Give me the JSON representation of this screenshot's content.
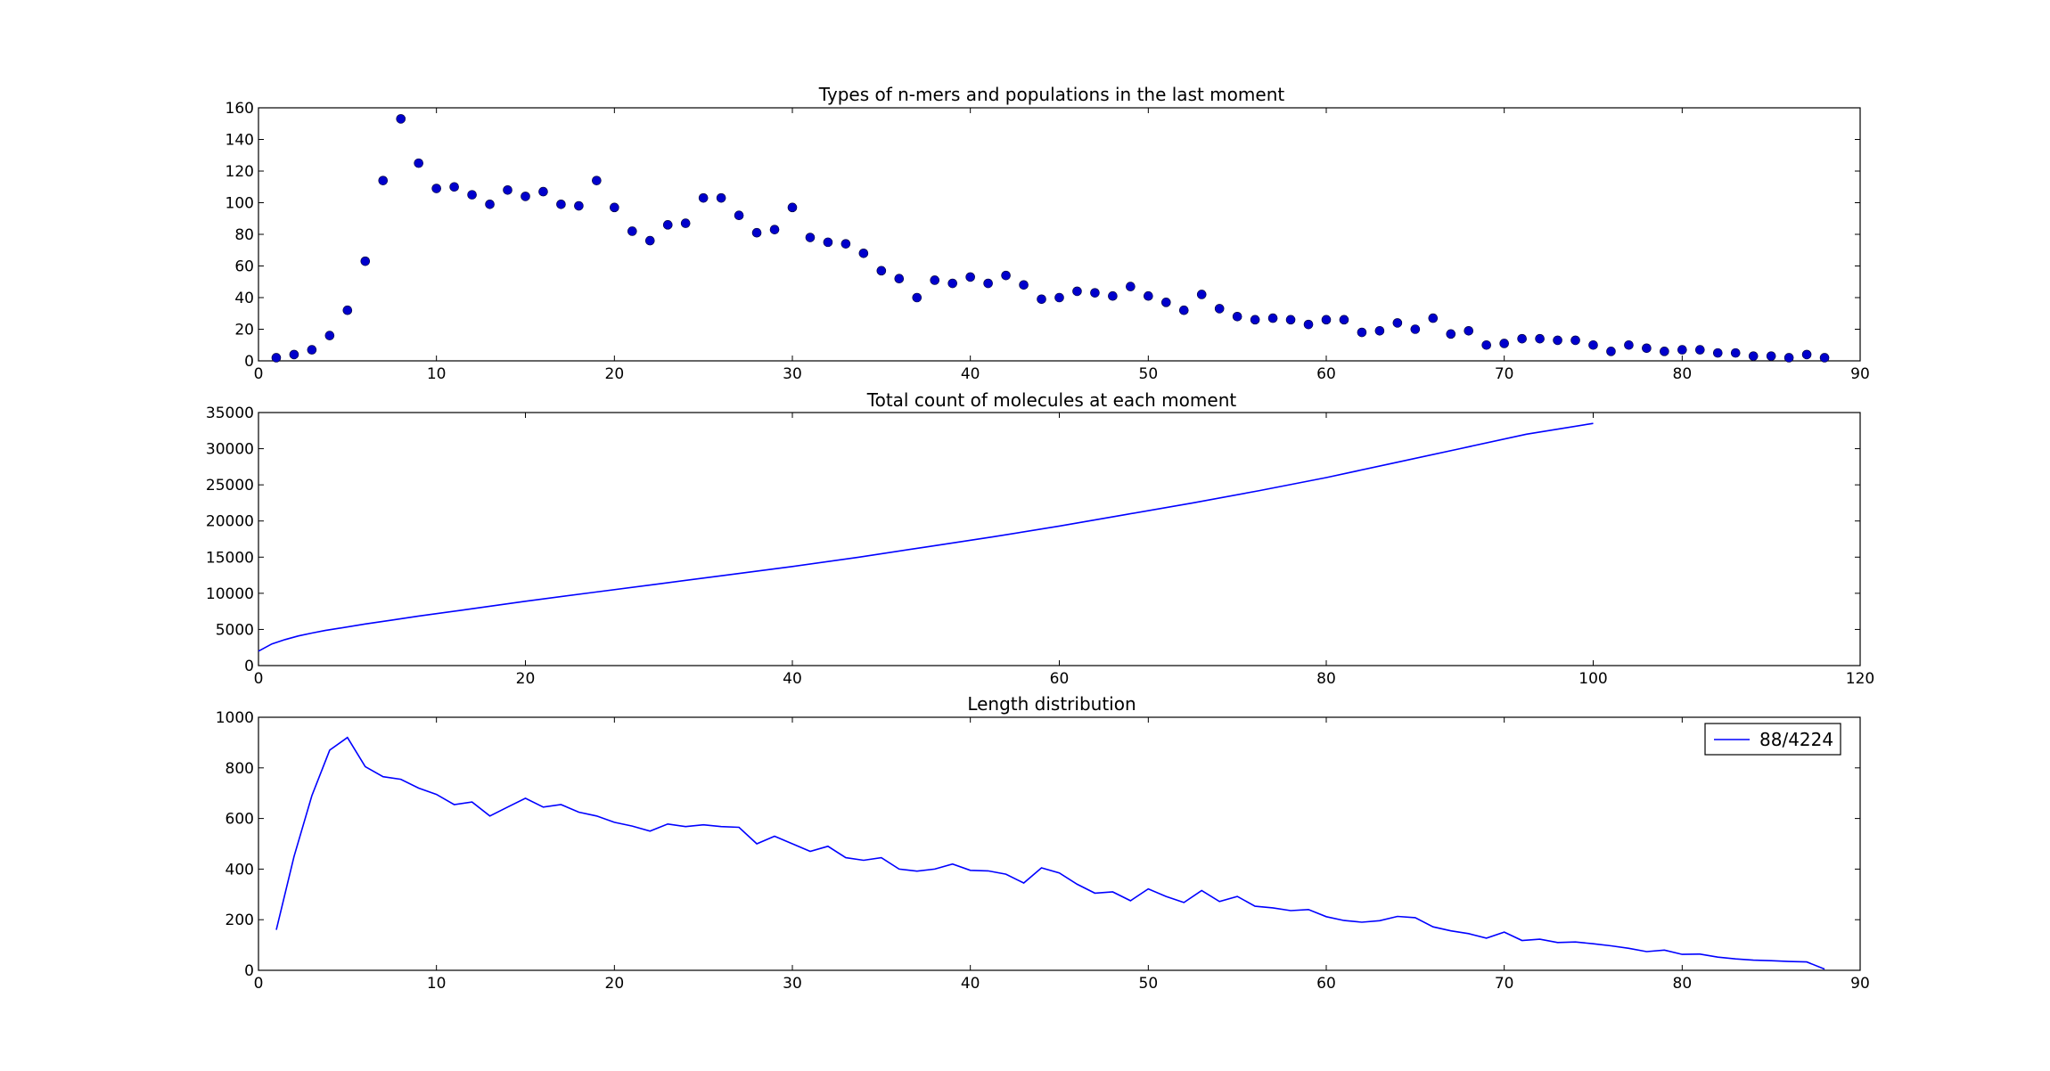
{
  "chart_data": [
    {
      "type": "scatter",
      "title": "Types of n-mers and populations in the last moment",
      "xlabel": "",
      "ylabel": "",
      "xlim": [
        0,
        90
      ],
      "ylim": [
        0,
        160
      ],
      "xticks": [
        "0",
        "10",
        "20",
        "30",
        "40",
        "50",
        "60",
        "70",
        "80",
        "90"
      ],
      "yticks": [
        "0",
        "20",
        "40",
        "60",
        "80",
        "100",
        "120",
        "140",
        "160"
      ],
      "grid": false,
      "color": "#0000cc",
      "series": [
        {
          "x": [
            1,
            2,
            3,
            4,
            5,
            6,
            7,
            8,
            9,
            10,
            11,
            12,
            13,
            14,
            15,
            16,
            17,
            18,
            19,
            20,
            21,
            22,
            23,
            24,
            25,
            26,
            27,
            28,
            29,
            30,
            31,
            32,
            33,
            34,
            35,
            36,
            37,
            38,
            39,
            40,
            41,
            42,
            43,
            44,
            45,
            46,
            47,
            48,
            49,
            50,
            51,
            52,
            53,
            54,
            55,
            56,
            57,
            58,
            59,
            60,
            61,
            62,
            63,
            64,
            65,
            66,
            67,
            68,
            69,
            70,
            71,
            72,
            73,
            74,
            75,
            76,
            77,
            78,
            79,
            80,
            81,
            82,
            83,
            84,
            85,
            86,
            87,
            88
          ],
          "y": [
            2,
            4,
            7,
            16,
            32,
            63,
            114,
            153,
            125,
            109,
            110,
            105,
            99,
            108,
            104,
            107,
            99,
            98,
            114,
            97,
            82,
            76,
            86,
            87,
            103,
            103,
            92,
            81,
            83,
            97,
            78,
            75,
            74,
            68,
            57,
            52,
            40,
            51,
            49,
            53,
            49,
            54,
            48,
            39,
            40,
            44,
            43,
            41,
            47,
            41,
            37,
            32,
            42,
            33,
            28,
            26,
            27,
            26,
            23,
            26,
            26,
            18,
            19,
            24,
            20,
            27,
            17,
            19,
            10,
            11,
            14,
            14,
            13,
            13,
            10,
            6,
            10,
            8,
            6,
            7,
            7,
            5,
            5,
            3,
            3,
            2,
            4,
            2
          ]
        }
      ]
    },
    {
      "type": "line",
      "title": "Total count of molecules at each moment",
      "xlabel": "",
      "ylabel": "",
      "xlim": [
        0,
        120
      ],
      "ylim": [
        0,
        35000
      ],
      "xticks": [
        "0",
        "20",
        "40",
        "60",
        "80",
        "100",
        "120"
      ],
      "yticks": [
        "0",
        "5000",
        "10000",
        "15000",
        "20000",
        "25000",
        "30000",
        "35000"
      ],
      "grid": false,
      "color": "#0000ff",
      "series": [
        {
          "x": [
            0,
            1,
            2,
            3,
            4,
            5,
            6,
            8,
            10,
            12,
            15,
            20,
            25,
            30,
            35,
            40,
            45,
            50,
            55,
            60,
            65,
            70,
            75,
            80,
            85,
            90,
            95,
            100
          ],
          "y": [
            2000,
            3000,
            3600,
            4100,
            4500,
            4850,
            5150,
            5750,
            6300,
            6850,
            7600,
            8900,
            10100,
            11300,
            12500,
            13700,
            15000,
            16400,
            17800,
            19300,
            20900,
            22500,
            24200,
            26000,
            28000,
            30000,
            32000,
            33500
          ]
        }
      ]
    },
    {
      "type": "line",
      "title": "Length distribution",
      "xlabel": "",
      "ylabel": "",
      "xlim": [
        0,
        90
      ],
      "ylim": [
        0,
        1000
      ],
      "xticks": [
        "0",
        "10",
        "20",
        "30",
        "40",
        "50",
        "60",
        "70",
        "80",
        "90"
      ],
      "yticks": [
        "0",
        "200",
        "400",
        "600",
        "800",
        "1000"
      ],
      "grid": false,
      "legend_position": "upper-right",
      "color": "#0000ff",
      "series": [
        {
          "name": "88/4224",
          "x": [
            1,
            2,
            3,
            4,
            5,
            6,
            7,
            8,
            9,
            10,
            11,
            12,
            13,
            14,
            15,
            16,
            17,
            18,
            19,
            20,
            21,
            22,
            23,
            24,
            25,
            26,
            27,
            28,
            29,
            30,
            31,
            32,
            33,
            34,
            35,
            36,
            37,
            38,
            39,
            40,
            41,
            42,
            43,
            44,
            45,
            46,
            47,
            48,
            49,
            50,
            51,
            52,
            53,
            54,
            55,
            56,
            57,
            58,
            59,
            60,
            61,
            62,
            63,
            64,
            65,
            66,
            67,
            68,
            69,
            70,
            71,
            72,
            73,
            74,
            75,
            76,
            77,
            78,
            79,
            80,
            81,
            82,
            83,
            84,
            85,
            86,
            87,
            88
          ],
          "y": [
            160,
            450,
            690,
            870,
            920,
            805,
            765,
            755,
            720,
            695,
            655,
            665,
            610,
            645,
            680,
            645,
            655,
            625,
            610,
            585,
            570,
            550,
            578,
            568,
            575,
            568,
            565,
            500,
            530,
            500,
            470,
            490,
            445,
            435,
            445,
            400,
            392,
            400,
            420,
            395,
            393,
            380,
            345,
            405,
            385,
            340,
            305,
            310,
            275,
            322,
            292,
            268,
            315,
            272,
            292,
            253,
            247,
            236,
            240,
            212,
            197,
            190,
            196,
            213,
            208,
            172,
            156,
            145,
            127,
            151,
            118,
            123,
            110,
            112,
            105,
            97,
            87,
            74,
            80,
            63,
            64,
            52,
            45,
            40,
            38,
            35,
            33,
            5
          ]
        }
      ]
    }
  ]
}
